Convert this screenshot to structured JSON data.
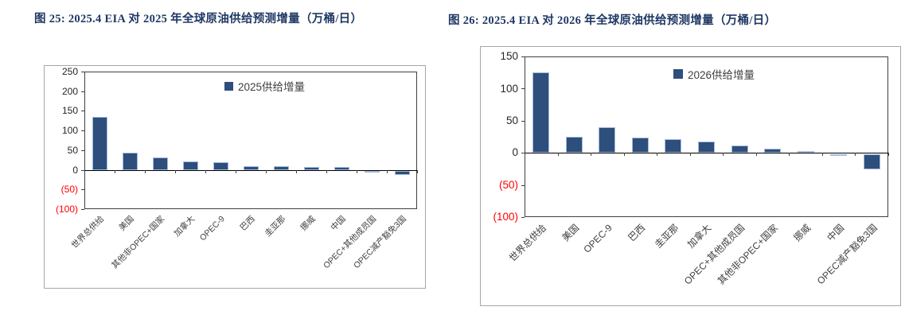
{
  "page": {
    "background": "#ffffff",
    "title_color": "#1F3864"
  },
  "figures": [
    {
      "title": "图 25: 2025.4 EIA 对 2025 年全球原油供给预测增量（万桶/日）"
    },
    {
      "title": "图 26: 2025.4 EIA 对 2026 年全球原油供给预测增量（万桶/日）"
    }
  ],
  "chart_data": [
    {
      "type": "bar",
      "title": "图 25: 2025.4 EIA 对 2025 年全球原油供给预测增量（万桶/日）",
      "legend": "2025供给增量",
      "legend_position": "top-center",
      "categories": [
        "世界总供给",
        "美国",
        "其他非OPEC+国家",
        "加拿大",
        "OPEC-9",
        "巴西",
        "圭亚那",
        "挪威",
        "中国",
        "OPEC+其他成员国",
        "OPEC减产豁免3国"
      ],
      "values": [
        135,
        44,
        31,
        22,
        19,
        10,
        9,
        8,
        7,
        -3,
        -9
      ],
      "xlabel": "",
      "ylabel": "",
      "ylim": [
        -100,
        250
      ],
      "yticks": [
        250,
        200,
        150,
        100,
        50,
        0,
        -50,
        -100
      ],
      "ytick_labels": [
        "250",
        "200",
        "150",
        "100",
        "50",
        "0",
        "(50)",
        "(100)"
      ],
      "grid": false,
      "bar_color": "#2E4E7C",
      "bar_border_color": "#A3BBDC",
      "negative_tick_color": "#FF0000"
    },
    {
      "type": "bar",
      "title": "图 26: 2025.4 EIA 对 2026 年全球原油供给预测增量（万桶/日）",
      "legend": "2026供给增量",
      "legend_position": "top-center",
      "categories": [
        "世界总供给",
        "美国",
        "OPEC-9",
        "巴西",
        "圭亚那",
        "加拿大",
        "OPEC+其他成员国",
        "其他非OPEC+国家",
        "挪威",
        "中国",
        "OPEC减产豁免3国"
      ],
      "values": [
        125,
        25,
        40,
        24,
        21,
        18,
        11,
        7,
        3,
        -1,
        -24
      ],
      "xlabel": "",
      "ylabel": "",
      "ylim": [
        -100,
        150
      ],
      "yticks": [
        150,
        100,
        50,
        0,
        -50,
        -100
      ],
      "ytick_labels": [
        "150",
        "100",
        "50",
        "0",
        "(50)",
        "(100)"
      ],
      "grid": false,
      "bar_color": "#2E4E7C",
      "bar_border_color": "#A3BBDC",
      "negative_tick_color": "#FF0000"
    }
  ]
}
